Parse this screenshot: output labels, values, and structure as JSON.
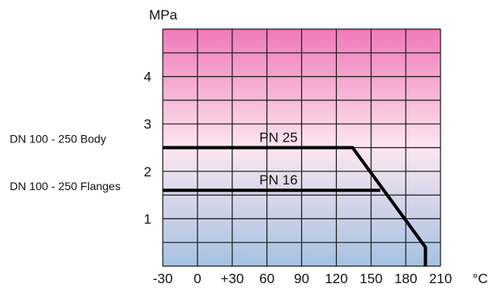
{
  "chart_data": {
    "type": "line",
    "ylabel": "MPa",
    "xlabel": "°C",
    "x_ticks": [
      "-30",
      "0",
      "+30",
      "60",
      "90",
      "120",
      "150",
      "180",
      "210"
    ],
    "x_tick_values": [
      -30,
      0,
      30,
      60,
      90,
      120,
      150,
      180,
      210
    ],
    "y_ticks": [
      "1",
      "2",
      "3",
      "4"
    ],
    "y_tick_values": [
      1,
      2,
      3,
      4
    ],
    "xlim": [
      -30,
      210
    ],
    "ylim": [
      0,
      5
    ],
    "x_grid_step": 30,
    "y_grid_step": 0.5,
    "grid": true,
    "background_gradient": {
      "top": "#f07ab8",
      "middle": "#fde6f1",
      "bottom": "#a5c2e2"
    },
    "series": [
      {
        "name": "PN 25",
        "color": "#000000",
        "points": [
          {
            "x": -30,
            "y": 2.5
          },
          {
            "x": 134,
            "y": 2.5
          },
          {
            "x": 197,
            "y": 0.4
          },
          {
            "x": 197,
            "y": 0.0
          }
        ]
      },
      {
        "name": "PN 16",
        "color": "#000000",
        "points": [
          {
            "x": -30,
            "y": 1.6
          },
          {
            "x": 158,
            "y": 1.6
          }
        ]
      }
    ],
    "side_labels": [
      {
        "text": "DN 100 - 250 Body",
        "y": 2.5
      },
      {
        "text": "DN 100 - 250 Flanges",
        "y": 1.6
      }
    ],
    "series_label_positions": [
      {
        "series": 0,
        "x": 70,
        "y": 2.62
      },
      {
        "series": 1,
        "x": 70,
        "y": 1.72
      }
    ]
  }
}
